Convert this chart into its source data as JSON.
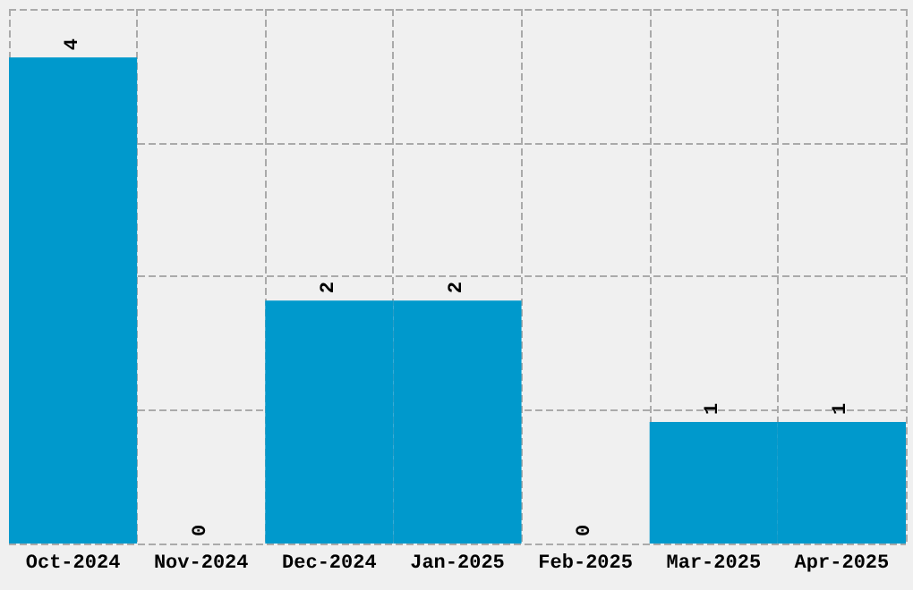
{
  "chart_data": {
    "type": "bar",
    "categories": [
      "Oct-2024",
      "Nov-2024",
      "Dec-2024",
      "Jan-2025",
      "Feb-2025",
      "Mar-2025",
      "Apr-2025"
    ],
    "values": [
      4,
      0,
      2,
      2,
      0,
      1,
      1
    ],
    "color": "#0099cc",
    "ylim": [
      0,
      4.4
    ],
    "yticks": [
      {
        "value": 0,
        "label": null
      },
      {
        "value": 1.1,
        "label": null
      },
      {
        "value": 2.2,
        "label": null
      },
      {
        "value": 3.3,
        "label": null
      },
      {
        "value": 4.4,
        "label": null
      }
    ],
    "tick_labels": "x",
    "grid": true,
    "data_labels": true
  }
}
